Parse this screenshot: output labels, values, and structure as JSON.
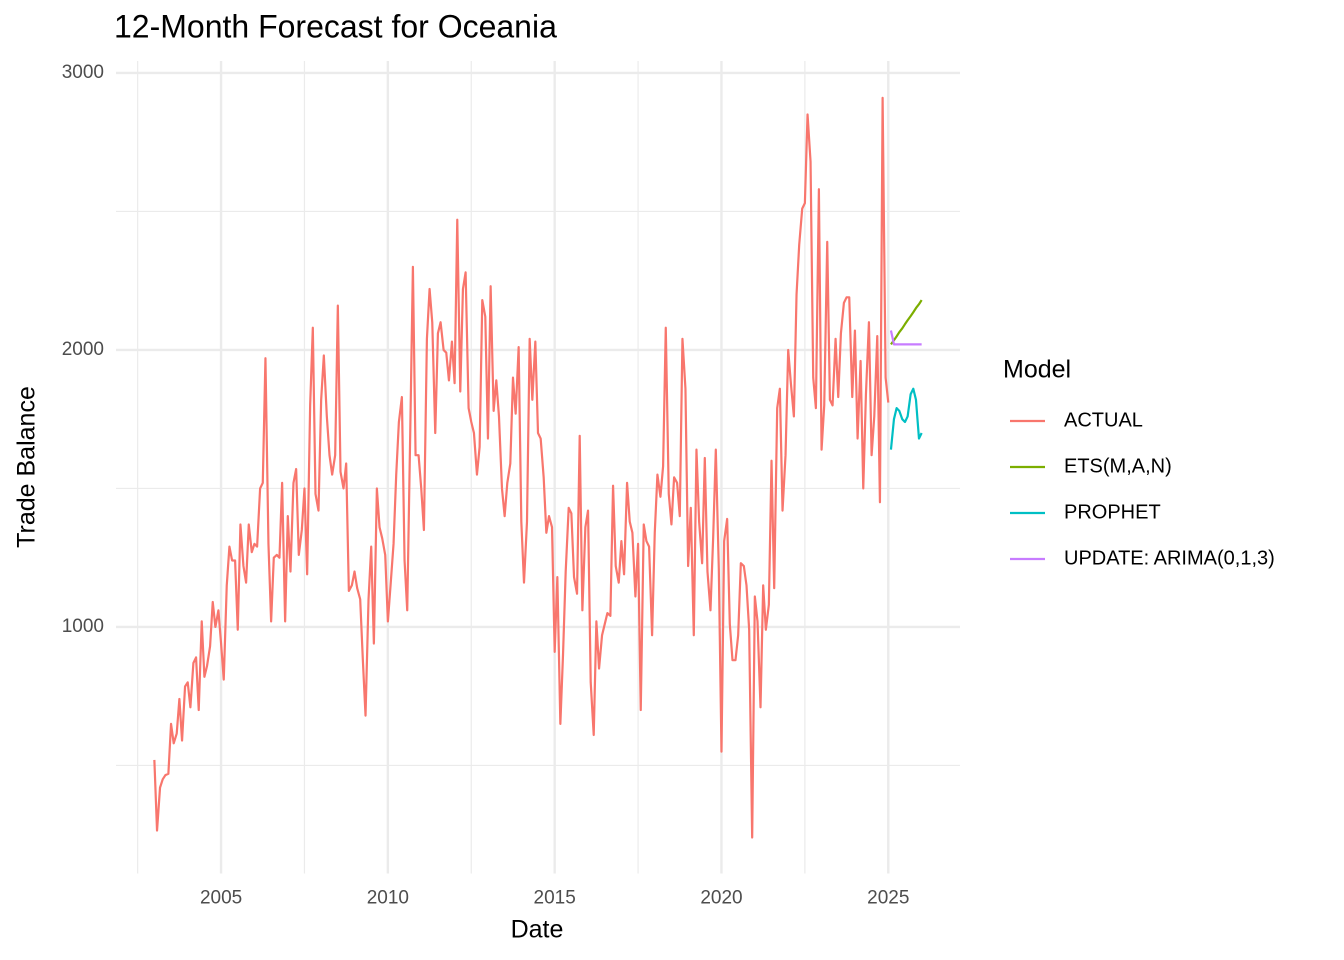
{
  "chart_data": {
    "type": "line",
    "title": "12-Month Forecast for Oceania",
    "x_label": "Date",
    "y_label": "Trade Balance",
    "legend_title": "Model",
    "legend_position": "right",
    "grid": true,
    "xlim": [
      2001.85,
      2027.15
    ],
    "xticks": [
      2005,
      2010,
      2015,
      2020,
      2025
    ],
    "xminor": [
      2002.5,
      2007.5,
      2012.5,
      2017.5,
      2022.5
    ],
    "ylim": [
      110,
      3043
    ],
    "yticks": [
      1000,
      2000,
      3000
    ],
    "yminor": [
      500,
      1500,
      2500
    ],
    "series": [
      {
        "name": "ACTUAL",
        "color": "#F8766D",
        "x": [
          2003,
          2003.08,
          2003.17,
          2003.25,
          2003.33,
          2003.42,
          2003.5,
          2003.58,
          2003.67,
          2003.75,
          2003.83,
          2003.92,
          2004,
          2004.08,
          2004.17,
          2004.25,
          2004.33,
          2004.42,
          2004.5,
          2004.58,
          2004.67,
          2004.75,
          2004.83,
          2004.92,
          2005,
          2005.08,
          2005.17,
          2005.25,
          2005.33,
          2005.42,
          2005.5,
          2005.58,
          2005.67,
          2005.75,
          2005.83,
          2005.92,
          2006,
          2006.08,
          2006.17,
          2006.25,
          2006.33,
          2006.42,
          2006.5,
          2006.58,
          2006.67,
          2006.75,
          2006.83,
          2006.92,
          2007,
          2007.08,
          2007.17,
          2007.25,
          2007.33,
          2007.42,
          2007.5,
          2007.58,
          2007.67,
          2007.75,
          2007.83,
          2007.92,
          2008,
          2008.08,
          2008.17,
          2008.25,
          2008.33,
          2008.42,
          2008.5,
          2008.58,
          2008.67,
          2008.75,
          2008.83,
          2008.92,
          2009,
          2009.08,
          2009.17,
          2009.25,
          2009.33,
          2009.42,
          2009.5,
          2009.58,
          2009.67,
          2009.75,
          2009.83,
          2009.92,
          2010,
          2010.08,
          2010.17,
          2010.25,
          2010.33,
          2010.42,
          2010.5,
          2010.58,
          2010.67,
          2010.75,
          2010.83,
          2010.92,
          2011,
          2011.08,
          2011.17,
          2011.25,
          2011.33,
          2011.42,
          2011.5,
          2011.58,
          2011.67,
          2011.75,
          2011.83,
          2011.92,
          2012,
          2012.08,
          2012.17,
          2012.25,
          2012.33,
          2012.42,
          2012.5,
          2012.58,
          2012.67,
          2012.75,
          2012.83,
          2012.92,
          2013,
          2013.08,
          2013.17,
          2013.25,
          2013.33,
          2013.42,
          2013.5,
          2013.58,
          2013.67,
          2013.75,
          2013.83,
          2013.92,
          2014,
          2014.08,
          2014.17,
          2014.25,
          2014.33,
          2014.42,
          2014.5,
          2014.58,
          2014.67,
          2014.75,
          2014.83,
          2014.92,
          2015,
          2015.08,
          2015.17,
          2015.25,
          2015.33,
          2015.42,
          2015.5,
          2015.58,
          2015.67,
          2015.75,
          2015.83,
          2015.92,
          2016,
          2016.08,
          2016.17,
          2016.25,
          2016.33,
          2016.42,
          2016.5,
          2016.58,
          2016.67,
          2016.75,
          2016.83,
          2016.92,
          2017,
          2017.08,
          2017.17,
          2017.25,
          2017.33,
          2017.42,
          2017.5,
          2017.58,
          2017.67,
          2017.75,
          2017.83,
          2017.92,
          2018,
          2018.08,
          2018.17,
          2018.25,
          2018.33,
          2018.42,
          2018.5,
          2018.58,
          2018.67,
          2018.75,
          2018.83,
          2018.92,
          2019,
          2019.08,
          2019.17,
          2019.25,
          2019.33,
          2019.42,
          2019.5,
          2019.58,
          2019.67,
          2019.75,
          2019.83,
          2019.92,
          2020,
          2020.08,
          2020.17,
          2020.25,
          2020.33,
          2020.42,
          2020.5,
          2020.58,
          2020.67,
          2020.75,
          2020.83,
          2020.92,
          2021,
          2021.08,
          2021.17,
          2021.25,
          2021.33,
          2021.42,
          2021.5,
          2021.58,
          2021.67,
          2021.75,
          2021.83,
          2021.92,
          2022,
          2022.08,
          2022.17,
          2022.25,
          2022.33,
          2022.42,
          2022.5,
          2022.58,
          2022.67,
          2022.75,
          2022.83,
          2022.92,
          2023,
          2023.08,
          2023.17,
          2023.25,
          2023.33,
          2023.42,
          2023.5,
          2023.58,
          2023.67,
          2023.75,
          2023.83,
          2023.92,
          2024,
          2024.08,
          2024.17,
          2024.25,
          2024.33,
          2024.42,
          2024.5,
          2024.58,
          2024.67,
          2024.75,
          2024.83,
          2024.92,
          2025
        ],
        "values": [
          520,
          265,
          420,
          450,
          465,
          470,
          650,
          580,
          615,
          740,
          590,
          785,
          800,
          710,
          870,
          890,
          700,
          1020,
          820,
          860,
          930,
          1090,
          1000,
          1060,
          940,
          810,
          1150,
          1290,
          1240,
          1240,
          990,
          1370,
          1220,
          1160,
          1370,
          1270,
          1300,
          1290,
          1500,
          1520,
          1970,
          1300,
          1020,
          1250,
          1260,
          1250,
          1520,
          1020,
          1400,
          1200,
          1520,
          1570,
          1260,
          1350,
          1500,
          1190,
          1800,
          2080,
          1480,
          1420,
          1820,
          1980,
          1760,
          1620,
          1550,
          1620,
          2160,
          1560,
          1500,
          1590,
          1130,
          1150,
          1200,
          1140,
          1100,
          880,
          680,
          1100,
          1290,
          940,
          1500,
          1360,
          1320,
          1260,
          1020,
          1150,
          1300,
          1550,
          1740,
          1830,
          1240,
          1060,
          1700,
          2300,
          1620,
          1620,
          1500,
          1350,
          2040,
          2220,
          2100,
          1700,
          2060,
          2100,
          2000,
          1990,
          1890,
          2030,
          1880,
          2470,
          1850,
          2220,
          2280,
          1790,
          1740,
          1700,
          1550,
          1650,
          2180,
          2120,
          1680,
          2230,
          1780,
          1890,
          1760,
          1500,
          1400,
          1520,
          1590,
          1900,
          1770,
          2010,
          1380,
          1160,
          1380,
          2040,
          1820,
          2030,
          1700,
          1680,
          1540,
          1340,
          1400,
          1360,
          910,
          1180,
          650,
          900,
          1200,
          1430,
          1410,
          1180,
          1120,
          1690,
          1060,
          1360,
          1420,
          800,
          610,
          1020,
          850,
          970,
          1010,
          1050,
          1040,
          1510,
          1220,
          1160,
          1310,
          1190,
          1520,
          1380,
          1340,
          1110,
          1300,
          700,
          1370,
          1310,
          1290,
          970,
          1340,
          1550,
          1470,
          1580,
          2080,
          1480,
          1370,
          1540,
          1520,
          1400,
          2040,
          1860,
          1220,
          1430,
          970,
          1640,
          1380,
          1230,
          1610,
          1200,
          1060,
          1320,
          1640,
          1210,
          550,
          1310,
          1390,
          1010,
          880,
          880,
          970,
          1230,
          1220,
          1150,
          990,
          240,
          1110,
          1020,
          710,
          1150,
          990,
          1080,
          1600,
          1140,
          1790,
          1860,
          1420,
          1620,
          2000,
          1880,
          1760,
          2200,
          2380,
          2510,
          2530,
          2850,
          2680,
          1900,
          1790,
          2580,
          1640,
          1800,
          2390,
          1820,
          1800,
          2040,
          1830,
          2060,
          2170,
          2190,
          2190,
          1830,
          2070,
          1680,
          1960,
          1500,
          1840,
          2100,
          1620,
          1760,
          2050,
          1450,
          2910,
          1900,
          1810
        ]
      },
      {
        "name": "ETS(M,A,N)",
        "color": "#7CAE00",
        "x": [
          2025.08,
          2025.17,
          2025.25,
          2025.33,
          2025.42,
          2025.5,
          2025.58,
          2025.67,
          2025.75,
          2025.83,
          2025.92,
          2026
        ],
        "values": [
          2020,
          2035,
          2049,
          2064,
          2078,
          2093,
          2107,
          2122,
          2136,
          2151,
          2165,
          2180
        ]
      },
      {
        "name": "PROPHET",
        "color": "#00BFC4",
        "x": [
          2025.08,
          2025.17,
          2025.25,
          2025.33,
          2025.42,
          2025.5,
          2025.58,
          2025.67,
          2025.75,
          2025.83,
          2025.92,
          2026
        ],
        "values": [
          1640,
          1750,
          1790,
          1780,
          1750,
          1740,
          1760,
          1840,
          1860,
          1820,
          1680,
          1700
        ]
      },
      {
        "name": "UPDATE: ARIMA(0,1,3)",
        "color": "#C77CFF",
        "x": [
          2025.08,
          2025.17,
          2025.25,
          2025.33,
          2025.42,
          2025.5,
          2025.58,
          2025.67,
          2025.75,
          2025.83,
          2025.92,
          2026
        ],
        "values": [
          2070,
          2020,
          2020,
          2020,
          2020,
          2020,
          2020,
          2020,
          2020,
          2020,
          2020,
          2020
        ]
      }
    ]
  }
}
